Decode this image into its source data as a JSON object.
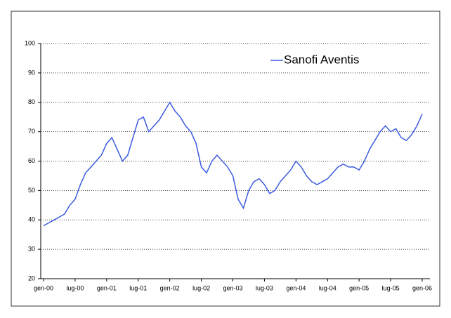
{
  "chart_data": {
    "type": "line",
    "x": [
      "2000-01",
      "2000-02",
      "2000-03",
      "2000-04",
      "2000-05",
      "2000-06",
      "2000-07",
      "2000-08",
      "2000-09",
      "2000-10",
      "2000-11",
      "2000-12",
      "2001-01",
      "2001-02",
      "2001-03",
      "2001-04",
      "2001-05",
      "2001-06",
      "2001-07",
      "2001-08",
      "2001-09",
      "2001-10",
      "2001-11",
      "2001-12",
      "2002-01",
      "2002-02",
      "2002-03",
      "2002-04",
      "2002-05",
      "2002-06",
      "2002-07",
      "2002-08",
      "2002-09",
      "2002-10",
      "2002-11",
      "2002-12",
      "2003-01",
      "2003-02",
      "2003-03",
      "2003-04",
      "2003-05",
      "2003-06",
      "2003-07",
      "2003-08",
      "2003-09",
      "2003-10",
      "2003-11",
      "2003-12",
      "2004-01",
      "2004-02",
      "2004-03",
      "2004-04",
      "2004-05",
      "2004-06",
      "2004-07",
      "2004-08",
      "2004-09",
      "2004-10",
      "2004-11",
      "2004-12",
      "2005-01",
      "2005-02",
      "2005-03",
      "2005-04",
      "2005-05",
      "2005-06",
      "2005-07",
      "2005-08",
      "2005-09",
      "2005-10",
      "2005-11",
      "2005-12",
      "2006-01"
    ],
    "series": [
      {
        "name": "Sanofi Aventis",
        "color": "#3a5be0",
        "values": [
          38,
          39,
          40,
          41,
          42,
          45,
          47,
          52,
          56,
          58,
          60,
          62,
          66,
          68,
          64,
          60,
          62,
          68,
          74,
          75,
          70,
          72,
          74,
          77,
          80,
          77,
          75,
          72,
          70,
          66,
          58,
          56,
          60,
          62,
          60,
          58,
          55,
          47,
          44,
          50,
          53,
          54,
          52,
          49,
          50,
          53,
          55,
          57,
          60,
          58,
          55,
          53,
          52,
          53,
          54,
          56,
          58,
          59,
          58,
          58,
          57,
          60,
          64,
          67,
          70,
          72,
          70,
          71,
          68,
          67,
          69,
          72,
          76
        ]
      }
    ],
    "xlim": [
      "2000-01",
      "2006-01"
    ],
    "xticks": [
      {
        "value": "2000-01",
        "label": "gen-00"
      },
      {
        "value": "2000-07",
        "label": "lug-00"
      },
      {
        "value": "2001-01",
        "label": "gen-01"
      },
      {
        "value": "2001-07",
        "label": "lug-01"
      },
      {
        "value": "2002-01",
        "label": "gen-02"
      },
      {
        "value": "2002-07",
        "label": "lug-02"
      },
      {
        "value": "2003-01",
        "label": "gen-03"
      },
      {
        "value": "2003-07",
        "label": "lug-03"
      },
      {
        "value": "2004-01",
        "label": "gen-04"
      },
      {
        "value": "2004-07",
        "label": "lug-04"
      },
      {
        "value": "2005-01",
        "label": "gen-05"
      },
      {
        "value": "2005-07",
        "label": "lug-05"
      },
      {
        "value": "2006-01",
        "label": "gen-06"
      }
    ],
    "ylim": [
      20,
      100
    ],
    "yticks": [
      20,
      30,
      40,
      50,
      60,
      70,
      80,
      90,
      100
    ],
    "grid": true,
    "legend": "top-right"
  }
}
